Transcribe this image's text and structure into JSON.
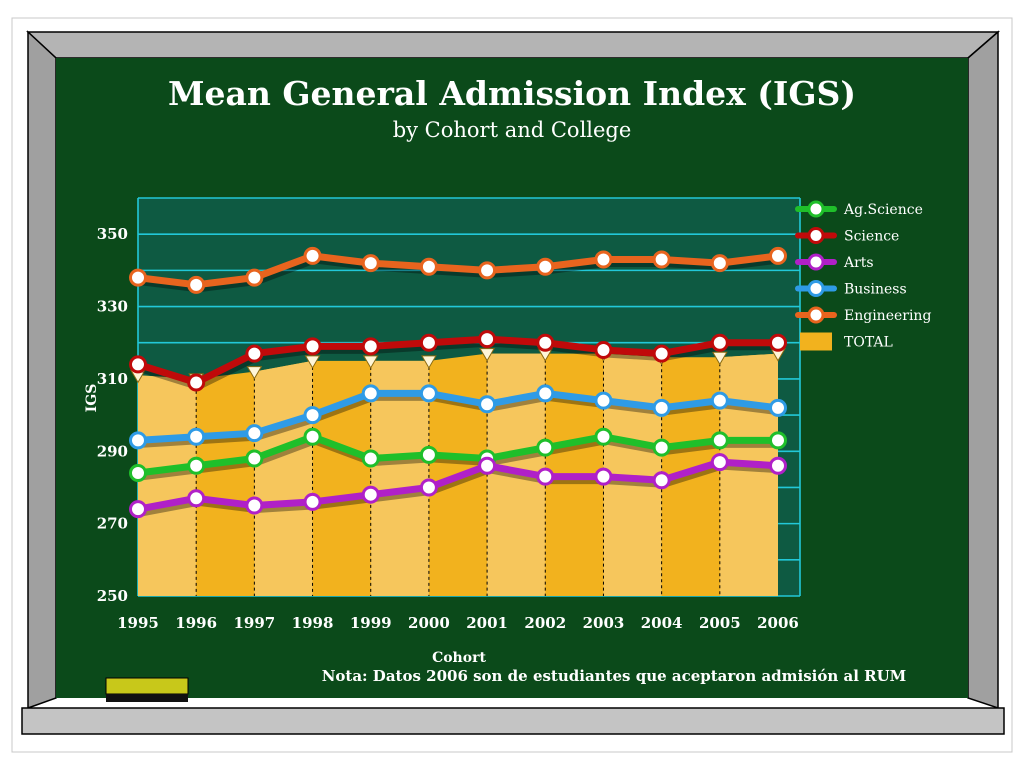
{
  "chart_data": {
    "type": "line",
    "title": "Mean General Admission Index (IGS)",
    "subtitle": "by Cohort and College",
    "xlabel": "Cohort",
    "ylabel": "IGS",
    "ylim": [
      250,
      360
    ],
    "yticks": [
      250,
      270,
      290,
      310,
      330,
      350
    ],
    "x": [
      "1995",
      "1996",
      "1997",
      "1998",
      "1999",
      "2000",
      "2001",
      "2002",
      "2003",
      "2004",
      "2005",
      "2006"
    ],
    "legend_position": "right",
    "grid": true,
    "series": [
      {
        "name": "Ag.Science",
        "color": "#1fbf2a",
        "values": [
          284,
          286,
          288,
          294,
          288,
          289,
          288,
          291,
          294,
          291,
          293,
          293
        ]
      },
      {
        "name": "Science",
        "color": "#c00a0a",
        "values": [
          314,
          309,
          317,
          319,
          319,
          320,
          321,
          320,
          318,
          317,
          320,
          320
        ]
      },
      {
        "name": "Arts",
        "color": "#b020c8",
        "values": [
          274,
          277,
          275,
          276,
          278,
          280,
          286,
          283,
          283,
          282,
          287,
          286
        ]
      },
      {
        "name": "Business",
        "color": "#2f9be6",
        "values": [
          293,
          294,
          295,
          300,
          306,
          306,
          303,
          306,
          304,
          302,
          304,
          302
        ]
      },
      {
        "name": "Engineering",
        "color": "#e8641e",
        "values": [
          338,
          336,
          338,
          344,
          342,
          341,
          340,
          341,
          343,
          343,
          342,
          344
        ]
      },
      {
        "name": "TOTAL",
        "color": "#f2b21e",
        "type": "area",
        "values": [
          311,
          310,
          312,
          315,
          315,
          315,
          317,
          317,
          317,
          316,
          316,
          317
        ]
      }
    ]
  },
  "note": "Nota:  Datos 2006 son de estudiantes que aceptaron admisión al RUM",
  "colors": {
    "board": "#0b4a1a",
    "frame": "#b4b4b4",
    "plot_band": "#0e5a42",
    "gridline": "#22c8d8"
  }
}
